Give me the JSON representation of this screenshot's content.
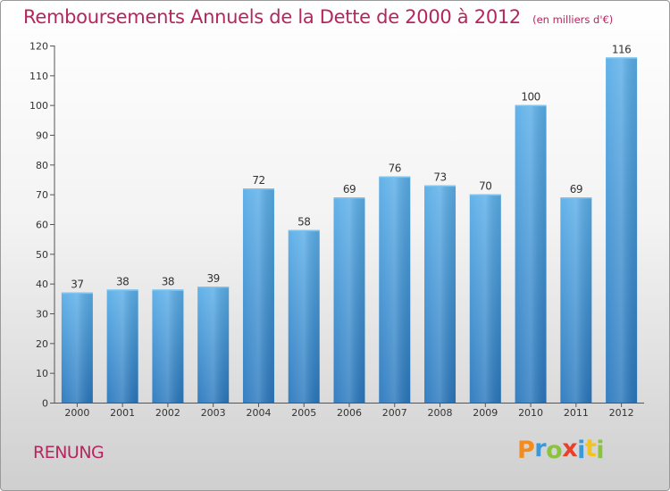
{
  "chart_data": {
    "type": "bar",
    "title": "Remboursements Annuels de la Dette de 2000 à 2012",
    "subtitle": "(en milliers d'€)",
    "categories": [
      "2000",
      "2001",
      "2002",
      "2003",
      "2004",
      "2005",
      "2006",
      "2007",
      "2008",
      "2009",
      "2010",
      "2011",
      "2012"
    ],
    "values": [
      37,
      38,
      38,
      39,
      72,
      58,
      69,
      76,
      73,
      70,
      100,
      69,
      116
    ],
    "ylim": [
      0,
      120
    ],
    "yticks": [
      0,
      10,
      20,
      30,
      40,
      50,
      60,
      70,
      80,
      90,
      100,
      110,
      120
    ],
    "xlabel": "",
    "ylabel": "",
    "grid": false,
    "bar_color": "#3b8fd4",
    "bar_color_light": "#5aaee8",
    "bar_color_dark": "#2a78be"
  },
  "footer": {
    "commune": "RENUNG",
    "brand_letters": [
      {
        "ch": "P",
        "color": "#f28c1e"
      },
      {
        "ch": "r",
        "color": "#3a9ad9"
      },
      {
        "ch": "o",
        "color": "#8ac43f"
      },
      {
        "ch": "x",
        "color": "#e8402a"
      },
      {
        "ch": "i",
        "color": "#3a9ad9"
      },
      {
        "ch": "t",
        "color": "#f2c31e"
      },
      {
        "ch": "i",
        "color": "#8ac43f"
      }
    ]
  },
  "colors": {
    "title": "#b5265e",
    "axis": "#555555"
  }
}
